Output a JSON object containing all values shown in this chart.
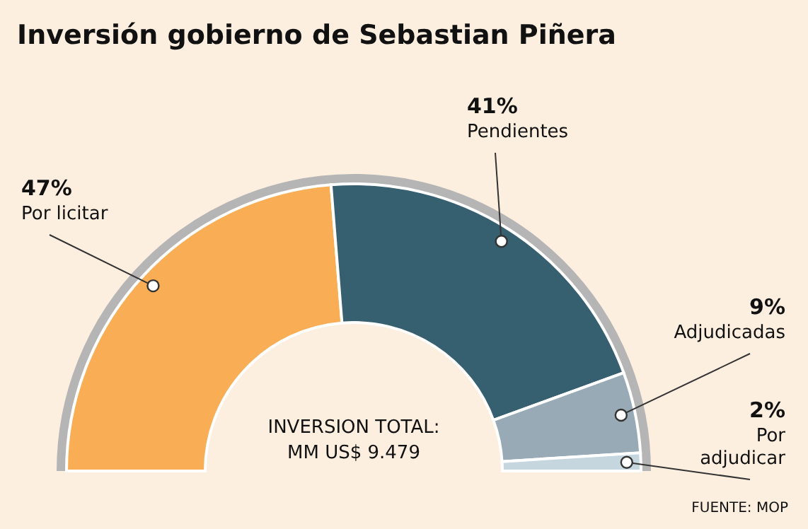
{
  "chart_data": {
    "type": "donut",
    "title": "Inversión gobierno de Sebastian Piñera",
    "categories": [
      "Por licitar",
      "Pendientes",
      "Adjudicadas",
      "Por adjudicar"
    ],
    "values": [
      47,
      41,
      9,
      2
    ],
    "value_labels": [
      "47%",
      "41%",
      "9%",
      "2%"
    ],
    "colors": [
      "#f9ae55",
      "#365f70",
      "#97aab6",
      "#c6d6df"
    ],
    "annotations": [
      "INVERSION TOTAL:",
      "MM US$ 9.479",
      "FUENTE: MOP"
    ]
  }
}
